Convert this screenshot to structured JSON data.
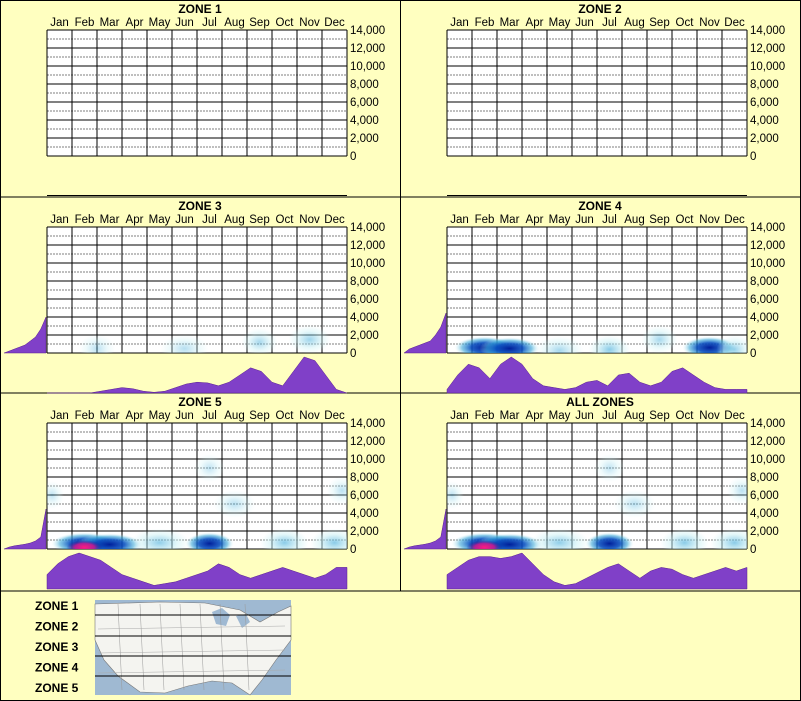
{
  "panels": [
    {
      "title": "ZONE 1",
      "blobs": [],
      "profile": [],
      "elev": []
    },
    {
      "title": "ZONE 2",
      "blobs": [],
      "profile": [],
      "elev": []
    },
    {
      "title": "ZONE 3",
      "blobs": [
        {
          "month": 2.0,
          "elev": 500,
          "intensity": 0.15,
          "spread": 0.6
        },
        {
          "month": 5.5,
          "elev": 500,
          "intensity": 0.18,
          "spread": 0.8
        },
        {
          "month": 8.5,
          "elev": 1200,
          "intensity": 0.3,
          "spread": 0.6
        },
        {
          "month": 10.5,
          "elev": 1500,
          "intensity": 0.35,
          "spread": 0.7
        }
      ],
      "profile": [
        0,
        0,
        0,
        0,
        0,
        0.05,
        0.1,
        0.15,
        0.12,
        0.05,
        0.02,
        0.05,
        0.15,
        0.25,
        0.3,
        0.28,
        0.2,
        0.3,
        0.5,
        0.7,
        0.6,
        0.3,
        0.2,
        0.6,
        1.0,
        0.9,
        0.5,
        0.1,
        0
      ],
      "elev": [
        0,
        0.05,
        0.1,
        0.15,
        0.2,
        0.3,
        0.4,
        0.6,
        0.9
      ]
    },
    {
      "title": "ZONE 4",
      "blobs": [
        {
          "month": 1.5,
          "elev": 600,
          "intensity": 0.9,
          "spread": 1.0
        },
        {
          "month": 2.5,
          "elev": 500,
          "intensity": 1.0,
          "spread": 1.0
        },
        {
          "month": 4.5,
          "elev": 300,
          "intensity": 0.3,
          "spread": 0.8
        },
        {
          "month": 6.5,
          "elev": 400,
          "intensity": 0.5,
          "spread": 0.7
        },
        {
          "month": 8.5,
          "elev": 1500,
          "intensity": 0.3,
          "spread": 0.6
        },
        {
          "month": 10.5,
          "elev": 600,
          "intensity": 0.7,
          "spread": 0.9
        },
        {
          "month": 11.5,
          "elev": 400,
          "intensity": 0.4,
          "spread": 0.6
        }
      ],
      "profile": [
        0.1,
        0.5,
        0.8,
        0.7,
        0.4,
        0.8,
        1.0,
        0.8,
        0.4,
        0.2,
        0.15,
        0.1,
        0.15,
        0.3,
        0.35,
        0.2,
        0.5,
        0.55,
        0.3,
        0.2,
        0.3,
        0.6,
        0.7,
        0.5,
        0.3,
        0.15,
        0.1,
        0.1,
        0.1
      ],
      "elev": [
        0,
        0.1,
        0.15,
        0.2,
        0.25,
        0.3,
        0.45,
        0.65,
        1.0
      ]
    },
    {
      "title": "ZONE 5",
      "blobs": [
        {
          "month": 1.5,
          "elev": 600,
          "intensity": 1.0,
          "spread": 1.1
        },
        {
          "month": 2.5,
          "elev": 500,
          "intensity": 1.0,
          "spread": 1.1
        },
        {
          "month": 1.5,
          "elev": 200,
          "intensity": 1.0,
          "spread": 0.6,
          "hot": true
        },
        {
          "month": 4.5,
          "elev": 700,
          "intensity": 0.45,
          "spread": 1.0
        },
        {
          "month": 6.5,
          "elev": 600,
          "intensity": 0.7,
          "spread": 0.8
        },
        {
          "month": 7.5,
          "elev": 5000,
          "intensity": 0.15,
          "spread": 0.7
        },
        {
          "month": 9.5,
          "elev": 700,
          "intensity": 0.5,
          "spread": 0.8
        },
        {
          "month": 11.5,
          "elev": 700,
          "intensity": 0.5,
          "spread": 0.8
        },
        {
          "month": 11.8,
          "elev": 6500,
          "intensity": 0.15,
          "spread": 0.5
        },
        {
          "month": 0.2,
          "elev": 6000,
          "intensity": 0.1,
          "spread": 0.4
        },
        {
          "month": 6.5,
          "elev": 9000,
          "intensity": 0.1,
          "spread": 0.5
        }
      ],
      "profile": [
        0.4,
        0.7,
        0.9,
        1.0,
        0.9,
        0.8,
        0.6,
        0.4,
        0.3,
        0.2,
        0.1,
        0.15,
        0.2,
        0.3,
        0.4,
        0.5,
        0.7,
        0.6,
        0.4,
        0.3,
        0.4,
        0.5,
        0.6,
        0.5,
        0.4,
        0.3,
        0.4,
        0.6,
        0.6
      ],
      "elev": [
        0,
        0.05,
        0.08,
        0.1,
        0.12,
        0.15,
        0.2,
        0.3,
        1.0
      ]
    },
    {
      "title": "ALL ZONES",
      "blobs": [
        {
          "month": 1.5,
          "elev": 600,
          "intensity": 1.0,
          "spread": 1.1
        },
        {
          "month": 2.5,
          "elev": 500,
          "intensity": 1.0,
          "spread": 1.1
        },
        {
          "month": 1.5,
          "elev": 200,
          "intensity": 1.0,
          "spread": 0.6,
          "hot": true
        },
        {
          "month": 4.5,
          "elev": 700,
          "intensity": 0.45,
          "spread": 1.0
        },
        {
          "month": 6.5,
          "elev": 600,
          "intensity": 0.7,
          "spread": 0.8
        },
        {
          "month": 7.5,
          "elev": 5000,
          "intensity": 0.15,
          "spread": 0.7
        },
        {
          "month": 9.5,
          "elev": 700,
          "intensity": 0.5,
          "spread": 0.8
        },
        {
          "month": 11.5,
          "elev": 700,
          "intensity": 0.5,
          "spread": 0.8
        },
        {
          "month": 11.8,
          "elev": 6500,
          "intensity": 0.15,
          "spread": 0.5
        },
        {
          "month": 0.2,
          "elev": 6000,
          "intensity": 0.1,
          "spread": 0.4
        },
        {
          "month": 6.5,
          "elev": 9000,
          "intensity": 0.1,
          "spread": 0.5
        }
      ],
      "profile": [
        0.4,
        0.6,
        0.8,
        0.9,
        0.9,
        0.85,
        0.9,
        1.0,
        0.7,
        0.4,
        0.2,
        0.1,
        0.15,
        0.3,
        0.45,
        0.6,
        0.7,
        0.5,
        0.3,
        0.5,
        0.6,
        0.55,
        0.4,
        0.3,
        0.4,
        0.5,
        0.6,
        0.5,
        0.6
      ],
      "elev": [
        0,
        0.05,
        0.08,
        0.1,
        0.12,
        0.15,
        0.2,
        0.3,
        1.0
      ]
    }
  ],
  "months": [
    "Jan",
    "Feb",
    "Mar",
    "Apr",
    "May",
    "Jun",
    "Jul",
    "Aug",
    "Sep",
    "Oct",
    "Nov",
    "Dec"
  ],
  "y_ticks": [
    "14,000",
    "12,000",
    "10,000",
    "8,000",
    "6,000",
    "4,000",
    "2,000",
    "0"
  ],
  "legend_zones": [
    "ZONE 1",
    "ZONE 2",
    "ZONE 3",
    "ZONE 4",
    "ZONE 5"
  ],
  "colors": {
    "background": "#ffffc0",
    "profile": "#8040c8",
    "heat_low": "#c8f0f4",
    "heat_mid": "#3aa8d8",
    "heat_high": "#001f9a",
    "heat_hot": "#ff1a80"
  },
  "chart_data": {
    "type": "heatmap",
    "xlabels": [
      "Jan",
      "Feb",
      "Mar",
      "Apr",
      "May",
      "Jun",
      "Jul",
      "Aug",
      "Sep",
      "Oct",
      "Nov",
      "Dec"
    ],
    "ylabels": [
      "0",
      "2,000",
      "4,000",
      "6,000",
      "8,000",
      "10,000",
      "12,000",
      "14,000"
    ],
    "ylim": [
      0,
      14000
    ],
    "panels": [
      "ZONE 1",
      "ZONE 2",
      "ZONE 3",
      "ZONE 4",
      "ZONE 5",
      "ALL ZONES"
    ]
  }
}
